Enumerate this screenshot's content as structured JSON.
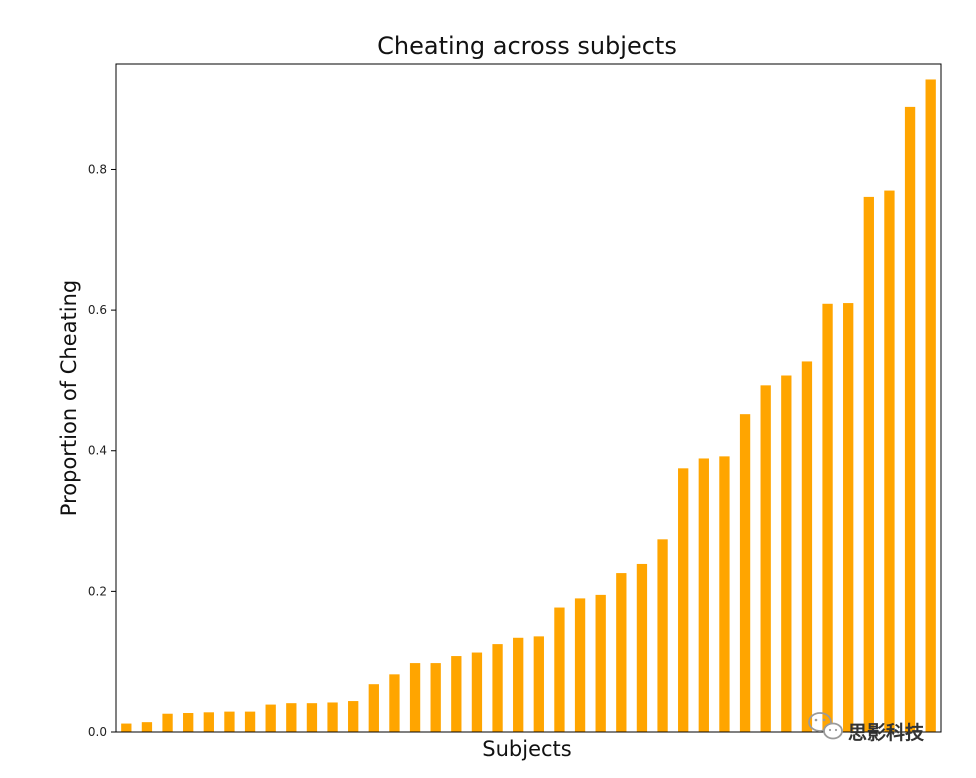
{
  "chart_data": {
    "type": "bar",
    "title": "Cheating across subjects",
    "xlabel": "Subjects",
    "ylabel": "Proportion of Cheating",
    "ylim": [
      0,
      0.95
    ],
    "yticks": [
      0.0,
      0.2,
      0.4,
      0.6,
      0.8
    ],
    "ytick_labels": [
      "0.0",
      "0.2",
      "0.4",
      "0.6",
      "0.8"
    ],
    "grid": false,
    "bar_color": "#FFA500",
    "values": [
      0.012,
      0.014,
      0.026,
      0.027,
      0.028,
      0.029,
      0.029,
      0.039,
      0.041,
      0.041,
      0.042,
      0.044,
      0.068,
      0.082,
      0.098,
      0.098,
      0.108,
      0.113,
      0.125,
      0.134,
      0.136,
      0.177,
      0.19,
      0.195,
      0.226,
      0.239,
      0.274,
      0.375,
      0.389,
      0.392,
      0.452,
      0.493,
      0.507,
      0.527,
      0.609,
      0.61,
      0.761,
      0.77,
      0.889,
      0.928
    ]
  },
  "watermark": {
    "text": "思影科技",
    "icon": "wechat-icon"
  }
}
